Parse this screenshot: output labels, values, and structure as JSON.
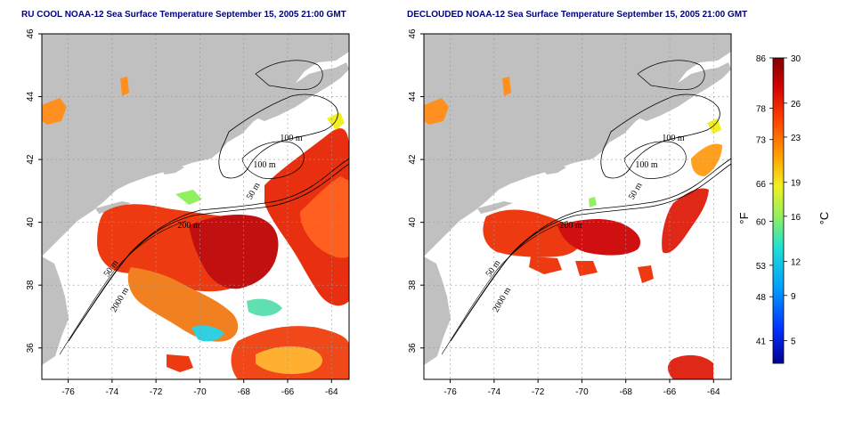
{
  "titles": {
    "left": "RU COOL NOAA-12 Sea Surface Temperature September 15, 2005 21:00 GMT",
    "right": "DECLOUDED NOAA-12 Sea Surface Temperature September 15, 2005 21:00 GMT"
  },
  "axes": {
    "lon_ticks": [
      "-76",
      "-74",
      "-72",
      "-70",
      "-68",
      "-66",
      "-64"
    ],
    "lat_ticks": [
      "36",
      "38",
      "40",
      "42",
      "44",
      "46"
    ],
    "lon_range": [
      -77.2,
      -63.2
    ],
    "lat_range": [
      35.0,
      46.0
    ]
  },
  "contours": {
    "left": [
      "100 m",
      "100 m",
      "50 m",
      "200 m",
      "50 m",
      "2000 m"
    ],
    "right": [
      "100 m",
      "100 m",
      "50 m",
      "200 m",
      "50 m",
      "2000 m"
    ]
  },
  "colorbar": {
    "celsius_ticks": [
      "30",
      "26",
      "23",
      "19",
      "16",
      "12",
      "9",
      "5"
    ],
    "fahrenheit_ticks": [
      "86",
      "78",
      "73",
      "66",
      "60",
      "53",
      "48",
      "41"
    ],
    "celsius_unit": "°C",
    "fahrenheit_unit": "°F",
    "colors": [
      "#00008f",
      "#0030ff",
      "#00a0ff",
      "#20e0d0",
      "#90f060",
      "#f0f020",
      "#ffa000",
      "#ff4000",
      "#d00000",
      "#7f0000"
    ]
  }
}
